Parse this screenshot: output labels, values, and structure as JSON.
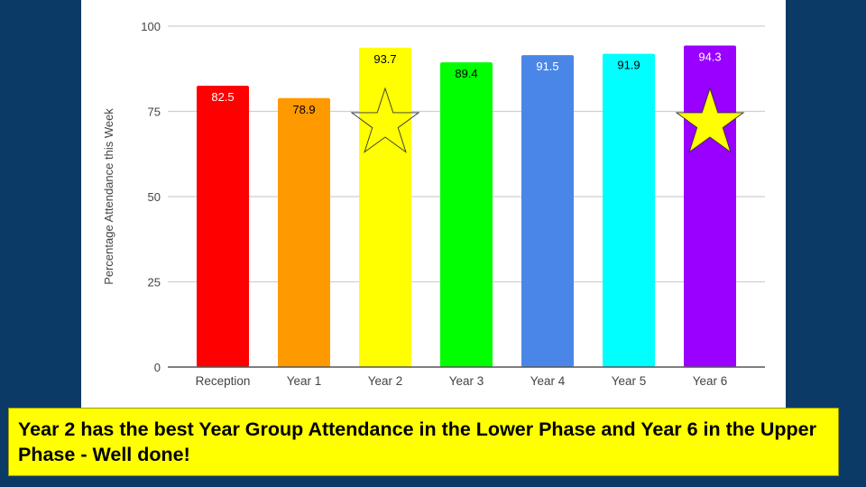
{
  "chart_data": {
    "type": "bar",
    "title": "",
    "xlabel": "",
    "ylabel": "Percentage Attendance this Week",
    "ylim": [
      0,
      100
    ],
    "yticks": [
      0,
      25,
      50,
      75,
      100
    ],
    "grid": true,
    "legend": "none",
    "categories": [
      "Reception",
      "Year 1",
      "Year 2",
      "Year 3",
      "Year 4",
      "Year 5",
      "Year 6"
    ],
    "values": [
      82.5,
      78.9,
      93.7,
      89.4,
      91.5,
      91.9,
      94.3
    ],
    "labels": [
      "82.5",
      "78.9",
      "93.7",
      "89.4",
      "91.5",
      "91.9",
      "94.3"
    ],
    "colors": [
      "#ff0000",
      "#ff9900",
      "#ffff00",
      "#00ff00",
      "#4a86e8",
      "#00ffff",
      "#9900ff"
    ],
    "label_colors": [
      "#ffffff",
      "#000000",
      "#000000",
      "#000000",
      "#ffffff",
      "#000000",
      "#ffffff"
    ],
    "annotations": [
      {
        "type": "star",
        "category": "Year 2",
        "style": "outline",
        "meaning": "best lower phase"
      },
      {
        "type": "star",
        "category": "Year 6",
        "style": "filled",
        "fill": "#ffff00",
        "meaning": "best upper phase"
      }
    ]
  },
  "caption": {
    "text": "Year 2 has the best Year Group Attendance in the Lower Phase and Year 6 in the Upper Phase - Well done!",
    "background": "#ffff00"
  },
  "slide": {
    "background": "#0b3a66"
  }
}
